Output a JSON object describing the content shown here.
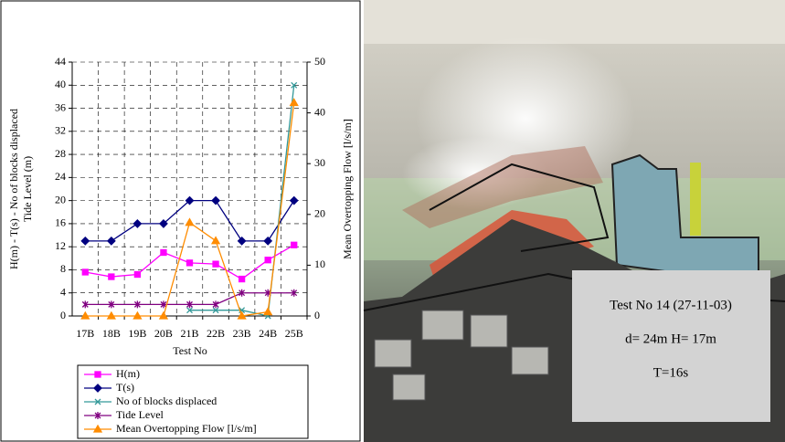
{
  "chart_data": {
    "type": "line",
    "x_label": "Test No",
    "y_label_lines": [
      "H(m) - T(s) - No of blocks displaced",
      "Tide Level (m)"
    ],
    "y2_label": "Mean Overtopping Flow [l/s/m]",
    "categories": [
      "17B",
      "18B",
      "19B",
      "20B",
      "21B",
      "22B",
      "23B",
      "24B",
      "25B"
    ],
    "ylim": [
      0,
      44
    ],
    "yticks": [
      0,
      4,
      8,
      12,
      16,
      20,
      24,
      28,
      32,
      36,
      40,
      44
    ],
    "y2lim": [
      0,
      50
    ],
    "y2ticks": [
      0,
      10,
      20,
      30,
      40,
      50
    ],
    "grid": true,
    "legend": "bottom",
    "series": [
      {
        "name": "H(m)",
        "color": "#ff00ff",
        "marker": "square",
        "values": [
          7.6,
          6.8,
          7.2,
          11,
          9.2,
          9,
          6.4,
          9.7,
          12.3
        ]
      },
      {
        "name": "T(s)",
        "color": "#000080",
        "marker": "diamond",
        "values": [
          13,
          13,
          16,
          16,
          20,
          20,
          13,
          13,
          20
        ]
      },
      {
        "name": "No of blocks displaced",
        "color": "#339999",
        "marker": "x",
        "values": [
          null,
          null,
          null,
          null,
          1,
          1,
          1,
          0,
          40
        ]
      },
      {
        "name": "Tide Level",
        "color": "#800080",
        "marker": "star",
        "values": [
          2,
          2,
          2,
          2,
          2,
          2,
          4,
          4,
          4
        ]
      },
      {
        "name": "Mean Overtopping Flow  [l/s/m]",
        "color": "#ff8c00",
        "marker": "triangle",
        "axis": "y2",
        "values": [
          0,
          0,
          0,
          0,
          18.4,
          14.8,
          0,
          0.8,
          42
        ]
      }
    ]
  },
  "photo_caption": {
    "lines": [
      "Test No 14  (27-11-03)",
      "d= 24m  H= 17m",
      "T=16s"
    ]
  }
}
